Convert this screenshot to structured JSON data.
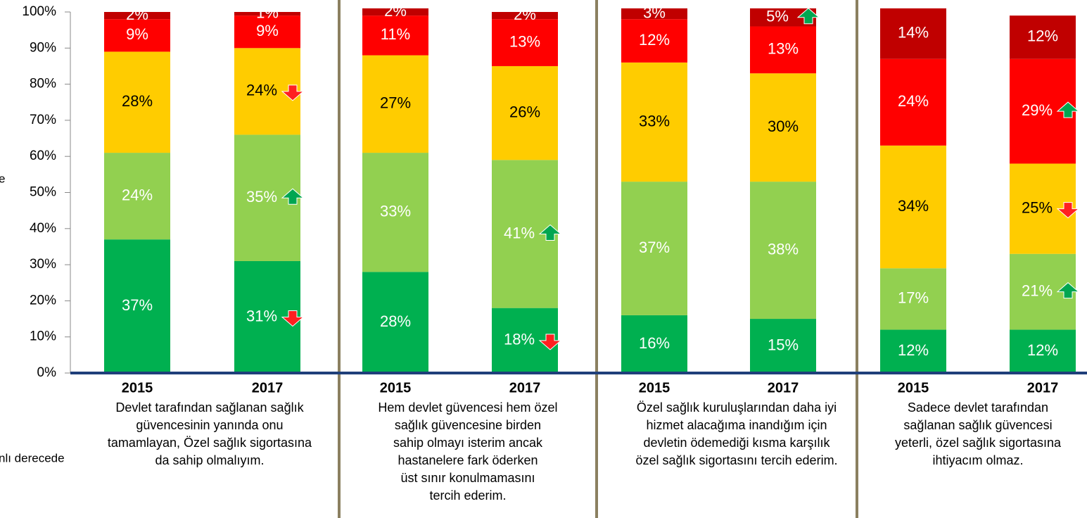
{
  "chart_data": {
    "type": "stacked_bar",
    "categories": [
      "2015",
      "2017",
      "2015",
      "2017",
      "2015",
      "2017",
      "2015",
      "2017"
    ],
    "group_labels": [
      [
        "Devlet tarafından sağlanan sağlık",
        "güvencesinin yanında onu",
        "tamamlayan, Özel sağlık sigortasına",
        "da sahip olmalıyım."
      ],
      [
        "Hem devlet güvencesi hem özel",
        "sağlık güvencesine birden",
        "sahip olmayı isterim ancak",
        "hastanelere fark öderken",
        "üst sınır konulmamasını",
        "tercih ederim."
      ],
      [
        "Özel sağlık kuruluşlarından daha iyi",
        "hizmet alacağıma inandığım için",
        "devletin ödemediği kısma karşılık",
        "özel sağlık sigortasını tercih ederim."
      ],
      [
        "Sadece devlet tarafından",
        "sağlanan sağlık güvencesi",
        "yeterli, özel sağlık sigortasına",
        "ihtiyacım olmaz."
      ]
    ],
    "annotations": [
      "e",
      "nlı derecede"
    ],
    "series": [
      {
        "color": "#00b050",
        "label_color": "#ffffff",
        "values": [
          37,
          31,
          28,
          18,
          16,
          15,
          12,
          12
        ],
        "value_labels": [
          "37%",
          "31%",
          "28%",
          "18%",
          "16%",
          "15%",
          "12%",
          "12%"
        ],
        "trend": [
          null,
          "down",
          null,
          "down",
          null,
          null,
          null,
          null
        ]
      },
      {
        "color": "#92d050",
        "label_color": "#ffffff",
        "values": [
          24,
          35,
          33,
          41,
          37,
          38,
          17,
          21
        ],
        "value_labels": [
          "24%",
          "35%",
          "33%",
          "41%",
          "37%",
          "38%",
          "17%",
          "21%"
        ],
        "trend": [
          null,
          "up",
          null,
          "up",
          null,
          null,
          null,
          "up"
        ]
      },
      {
        "color": "#ffcc00",
        "label_color": "#000000",
        "values": [
          28,
          24,
          27,
          26,
          33,
          30,
          34,
          25
        ],
        "value_labels": [
          "28%",
          "24%",
          "27%",
          "26%",
          "33%",
          "30%",
          "34%",
          "25%"
        ],
        "trend": [
          null,
          "down",
          null,
          null,
          null,
          null,
          null,
          "down"
        ]
      },
      {
        "color": "#ff0000",
        "label_color": "#ffffff",
        "values": [
          9,
          9,
          11,
          13,
          12,
          13,
          24,
          29
        ],
        "value_labels": [
          "9%",
          "9%",
          "11%",
          "13%",
          "12%",
          "13%",
          "24%",
          "29%"
        ],
        "trend": [
          null,
          null,
          null,
          null,
          null,
          null,
          null,
          "up"
        ]
      },
      {
        "color": "#c00000",
        "label_color": "#ffffff",
        "values": [
          2,
          1,
          2,
          2,
          3,
          5,
          14,
          12
        ],
        "value_labels": [
          "2%",
          "1%",
          "2%",
          "2%",
          "3%",
          "5%",
          "14%",
          "12%"
        ],
        "trend": [
          null,
          null,
          null,
          null,
          null,
          "up",
          null,
          null
        ]
      }
    ],
    "ylim": [
      0,
      100
    ],
    "yticks": [
      {
        "value": 0,
        "label": "0%"
      },
      {
        "value": 10,
        "label": "10%"
      },
      {
        "value": 20,
        "label": "20%"
      },
      {
        "value": 30,
        "label": "30%"
      },
      {
        "value": 40,
        "label": "40%"
      },
      {
        "value": 50,
        "label": "50%"
      },
      {
        "value": 60,
        "label": "60%"
      },
      {
        "value": 70,
        "label": "70%"
      },
      {
        "value": 80,
        "label": "80%"
      },
      {
        "value": 90,
        "label": "90%"
      },
      {
        "value": 100,
        "label": "100%"
      }
    ]
  }
}
